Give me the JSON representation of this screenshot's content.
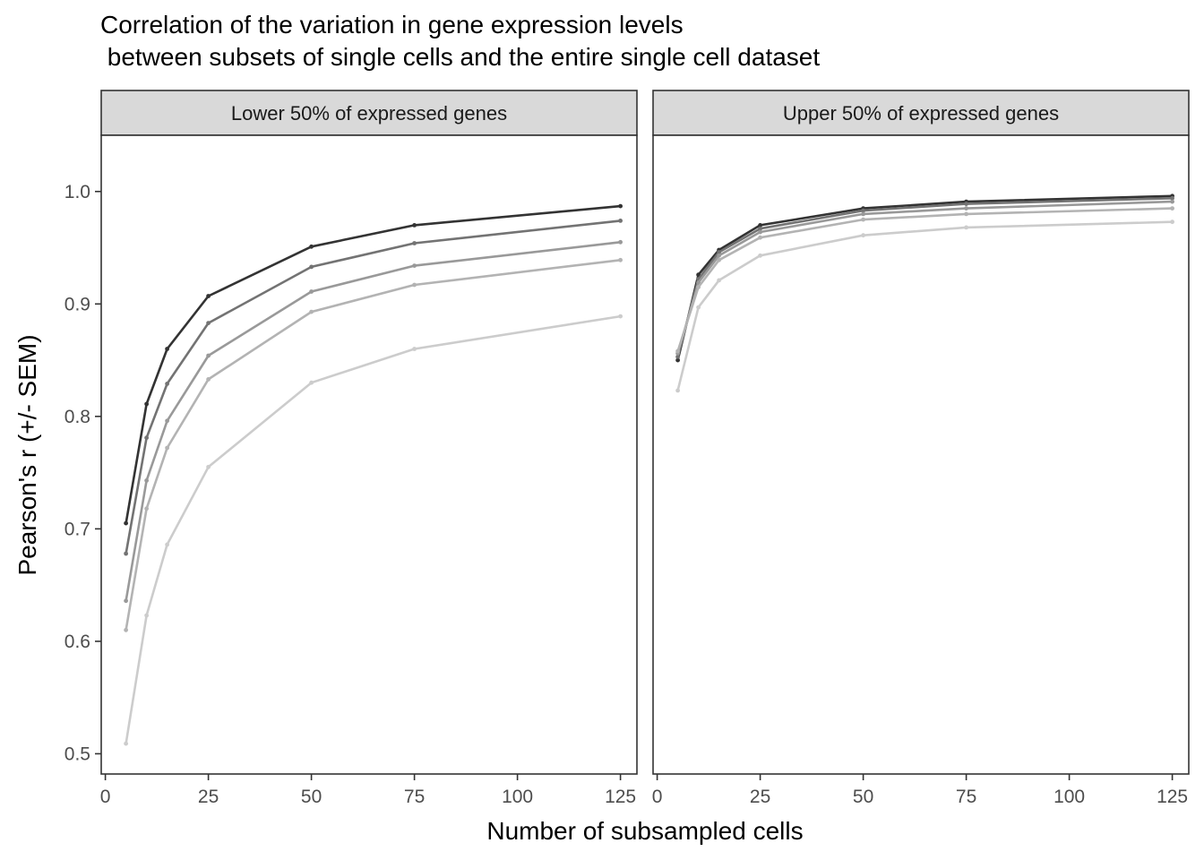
{
  "chart_data": {
    "type": "line",
    "title": [
      "Correlation of the variation in gene expression levels",
      " between subsets of single cells and the entire single cell dataset"
    ],
    "xlabel": "Number of subsampled cells",
    "ylabel": "Pearson's r (+/- SEM)",
    "xlim": [
      -1,
      129
    ],
    "ylim": [
      0.482,
      1.05
    ],
    "x_ticks": [
      0,
      25,
      50,
      75,
      100,
      125
    ],
    "y_ticks": [
      0.5,
      0.6,
      0.7,
      0.8,
      0.9,
      1.0
    ],
    "y_tick_labels": [
      "0.5",
      "0.6",
      "0.7",
      "0.8",
      "0.9",
      "1.0"
    ],
    "grid": false,
    "legend": "none",
    "x": [
      5,
      10,
      15,
      25,
      50,
      75,
      125
    ],
    "series_colors": [
      "#333333",
      "#737373",
      "#999999",
      "#b3b3b3",
      "#cccccc"
    ],
    "panels": [
      {
        "label": "Lower 50% of expressed genes",
        "series": [
          {
            "values": [
              0.705,
              0.811,
              0.86,
              0.907,
              0.951,
              0.97,
              0.987
            ]
          },
          {
            "values": [
              0.678,
              0.781,
              0.829,
              0.883,
              0.933,
              0.954,
              0.974
            ]
          },
          {
            "values": [
              0.636,
              0.743,
              0.796,
              0.854,
              0.911,
              0.934,
              0.955
            ]
          },
          {
            "values": [
              0.61,
              0.718,
              0.772,
              0.833,
              0.893,
              0.917,
              0.939
            ]
          },
          {
            "values": [
              0.509,
              0.623,
              0.686,
              0.755,
              0.83,
              0.86,
              0.889
            ]
          }
        ]
      },
      {
        "label": "Upper 50% of expressed genes",
        "series": [
          {
            "values": [
              0.85,
              0.926,
              0.948,
              0.97,
              0.985,
              0.991,
              0.996
            ]
          },
          {
            "values": [
              0.853,
              0.922,
              0.946,
              0.967,
              0.983,
              0.989,
              0.994
            ]
          },
          {
            "values": [
              0.856,
              0.919,
              0.943,
              0.964,
              0.98,
              0.985,
              0.991
            ]
          },
          {
            "values": [
              0.858,
              0.915,
              0.939,
              0.959,
              0.975,
              0.98,
              0.985
            ]
          },
          {
            "values": [
              0.823,
              0.897,
              0.921,
              0.943,
              0.961,
              0.968,
              0.973
            ]
          }
        ]
      }
    ]
  }
}
